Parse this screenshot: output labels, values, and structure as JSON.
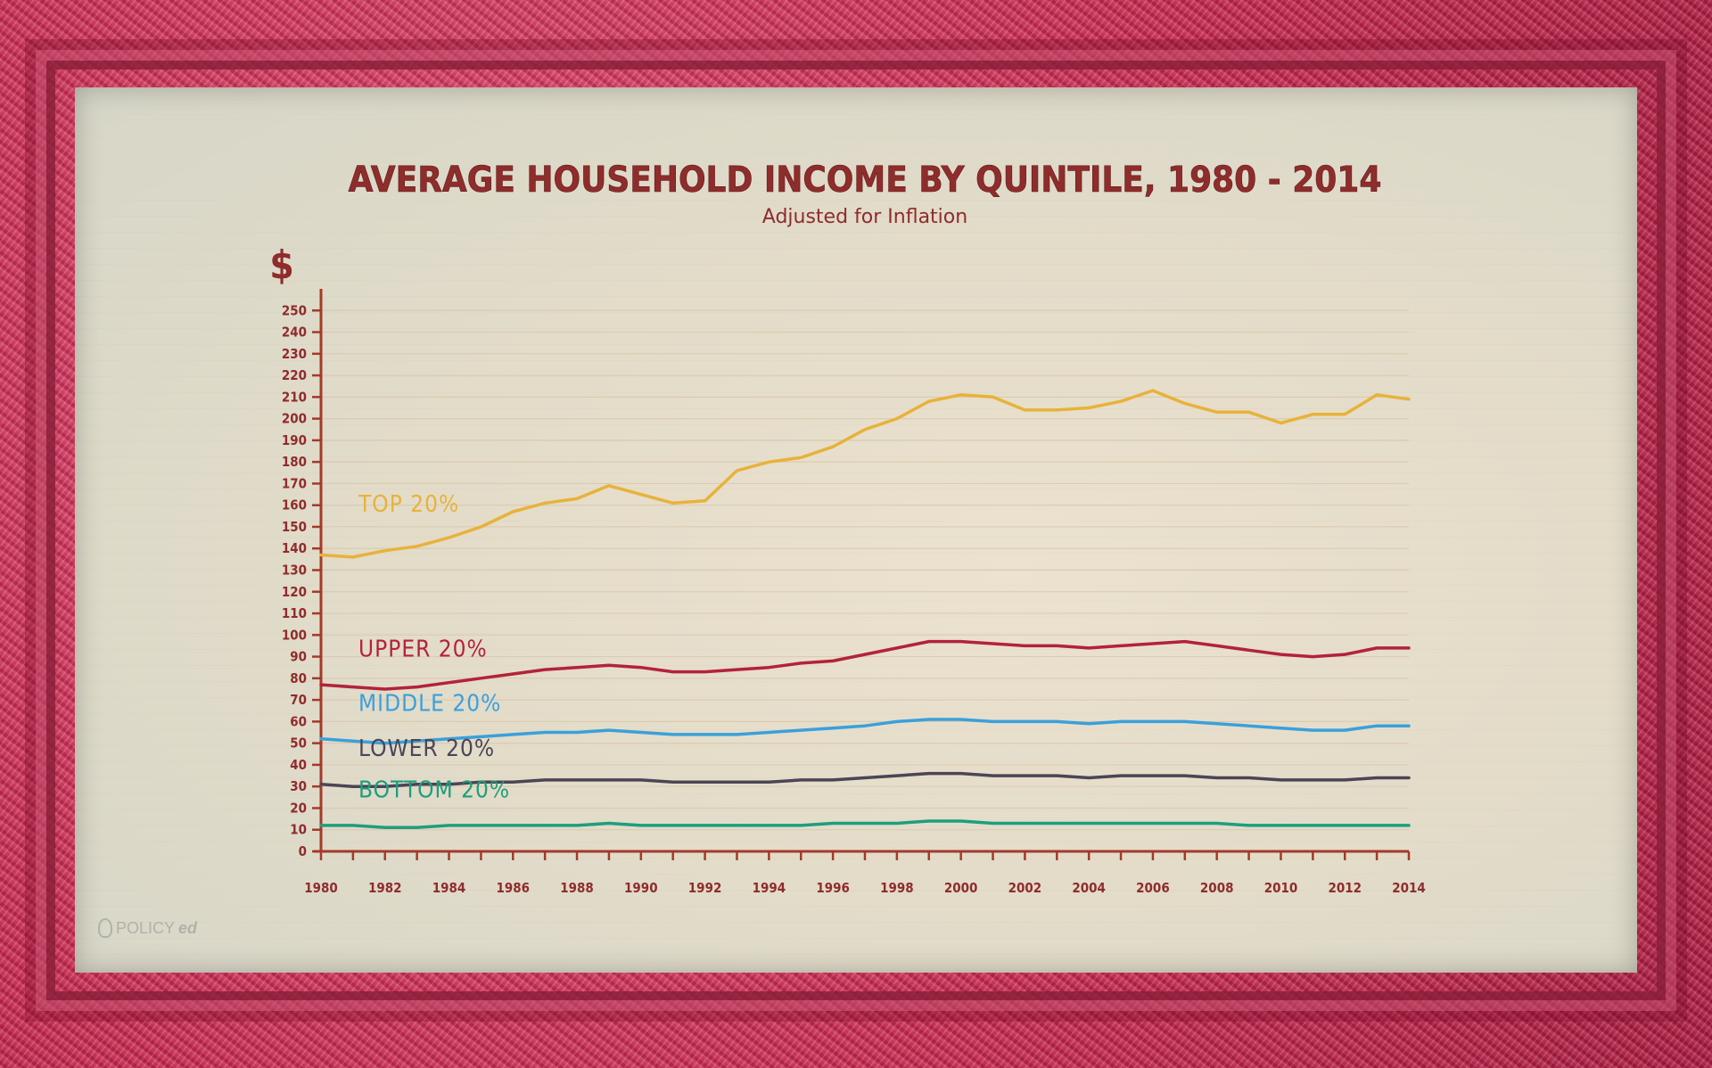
{
  "logo": {
    "part1": "POLICY",
    "part2": "ed"
  },
  "chart_data": {
    "type": "line",
    "title": "AVERAGE HOUSEHOLD INCOME BY QUINTILE, 1980 - 2014",
    "subtitle": "Adjusted for Inflation",
    "ylabel": "$",
    "xlabel": "",
    "xlim": [
      1980,
      2014
    ],
    "ylim": [
      0,
      260
    ],
    "yticks": [
      0,
      10,
      20,
      30,
      40,
      50,
      60,
      70,
      80,
      90,
      100,
      110,
      120,
      130,
      140,
      150,
      160,
      170,
      180,
      190,
      200,
      210,
      220,
      230,
      240,
      250
    ],
    "xtick_labels": [
      1980,
      1982,
      1984,
      1986,
      1988,
      1990,
      1992,
      1994,
      1996,
      1998,
      2000,
      2002,
      2004,
      2006,
      2008,
      2010,
      2012,
      2014
    ],
    "x": [
      1980,
      1981,
      1982,
      1983,
      1984,
      1985,
      1986,
      1987,
      1988,
      1989,
      1990,
      1991,
      1992,
      1993,
      1994,
      1995,
      1996,
      1997,
      1998,
      1999,
      2000,
      2001,
      2002,
      2003,
      2004,
      2005,
      2006,
      2007,
      2008,
      2009,
      2010,
      2011,
      2012,
      2013,
      2014
    ],
    "grid": true,
    "legend": "inline-left",
    "series": [
      {
        "name": "TOP 20%",
        "color": "#e8b23a",
        "values": [
          137,
          136,
          139,
          141,
          145,
          150,
          157,
          161,
          163,
          169,
          165,
          161,
          162,
          176,
          180,
          182,
          187,
          195,
          200,
          208,
          211,
          210,
          204,
          204,
          205,
          208,
          213,
          207,
          203,
          203,
          198,
          202,
          202,
          211,
          209
        ]
      },
      {
        "name": "UPPER 20%",
        "color": "#b3223b",
        "values": [
          77,
          76,
          75,
          76,
          78,
          80,
          82,
          84,
          85,
          86,
          85,
          83,
          83,
          84,
          85,
          87,
          88,
          91,
          94,
          97,
          97,
          96,
          95,
          95,
          94,
          95,
          96,
          97,
          95,
          93,
          91,
          90,
          91,
          94,
          94
        ]
      },
      {
        "name": "MIDDLE 20%",
        "color": "#3aa0dc",
        "values": [
          52,
          51,
          50,
          51,
          52,
          53,
          54,
          55,
          55,
          56,
          55,
          54,
          54,
          54,
          55,
          56,
          57,
          58,
          60,
          61,
          61,
          60,
          60,
          60,
          59,
          60,
          60,
          60,
          59,
          58,
          57,
          56,
          56,
          58,
          58
        ]
      },
      {
        "name": "LOWER 20%",
        "color": "#4b4556",
        "values": [
          31,
          30,
          30,
          31,
          31,
          32,
          32,
          33,
          33,
          33,
          33,
          32,
          32,
          32,
          32,
          33,
          33,
          34,
          35,
          36,
          36,
          35,
          35,
          35,
          34,
          35,
          35,
          35,
          34,
          34,
          33,
          33,
          33,
          34,
          34
        ]
      },
      {
        "name": "BOTTOM 20%",
        "color": "#1e9e7c",
        "values": [
          12,
          12,
          11,
          11,
          12,
          12,
          12,
          12,
          12,
          13,
          12,
          12,
          12,
          12,
          12,
          12,
          13,
          13,
          13,
          14,
          14,
          13,
          13,
          13,
          13,
          13,
          13,
          13,
          13,
          12,
          12,
          12,
          12,
          12,
          12
        ]
      }
    ]
  }
}
